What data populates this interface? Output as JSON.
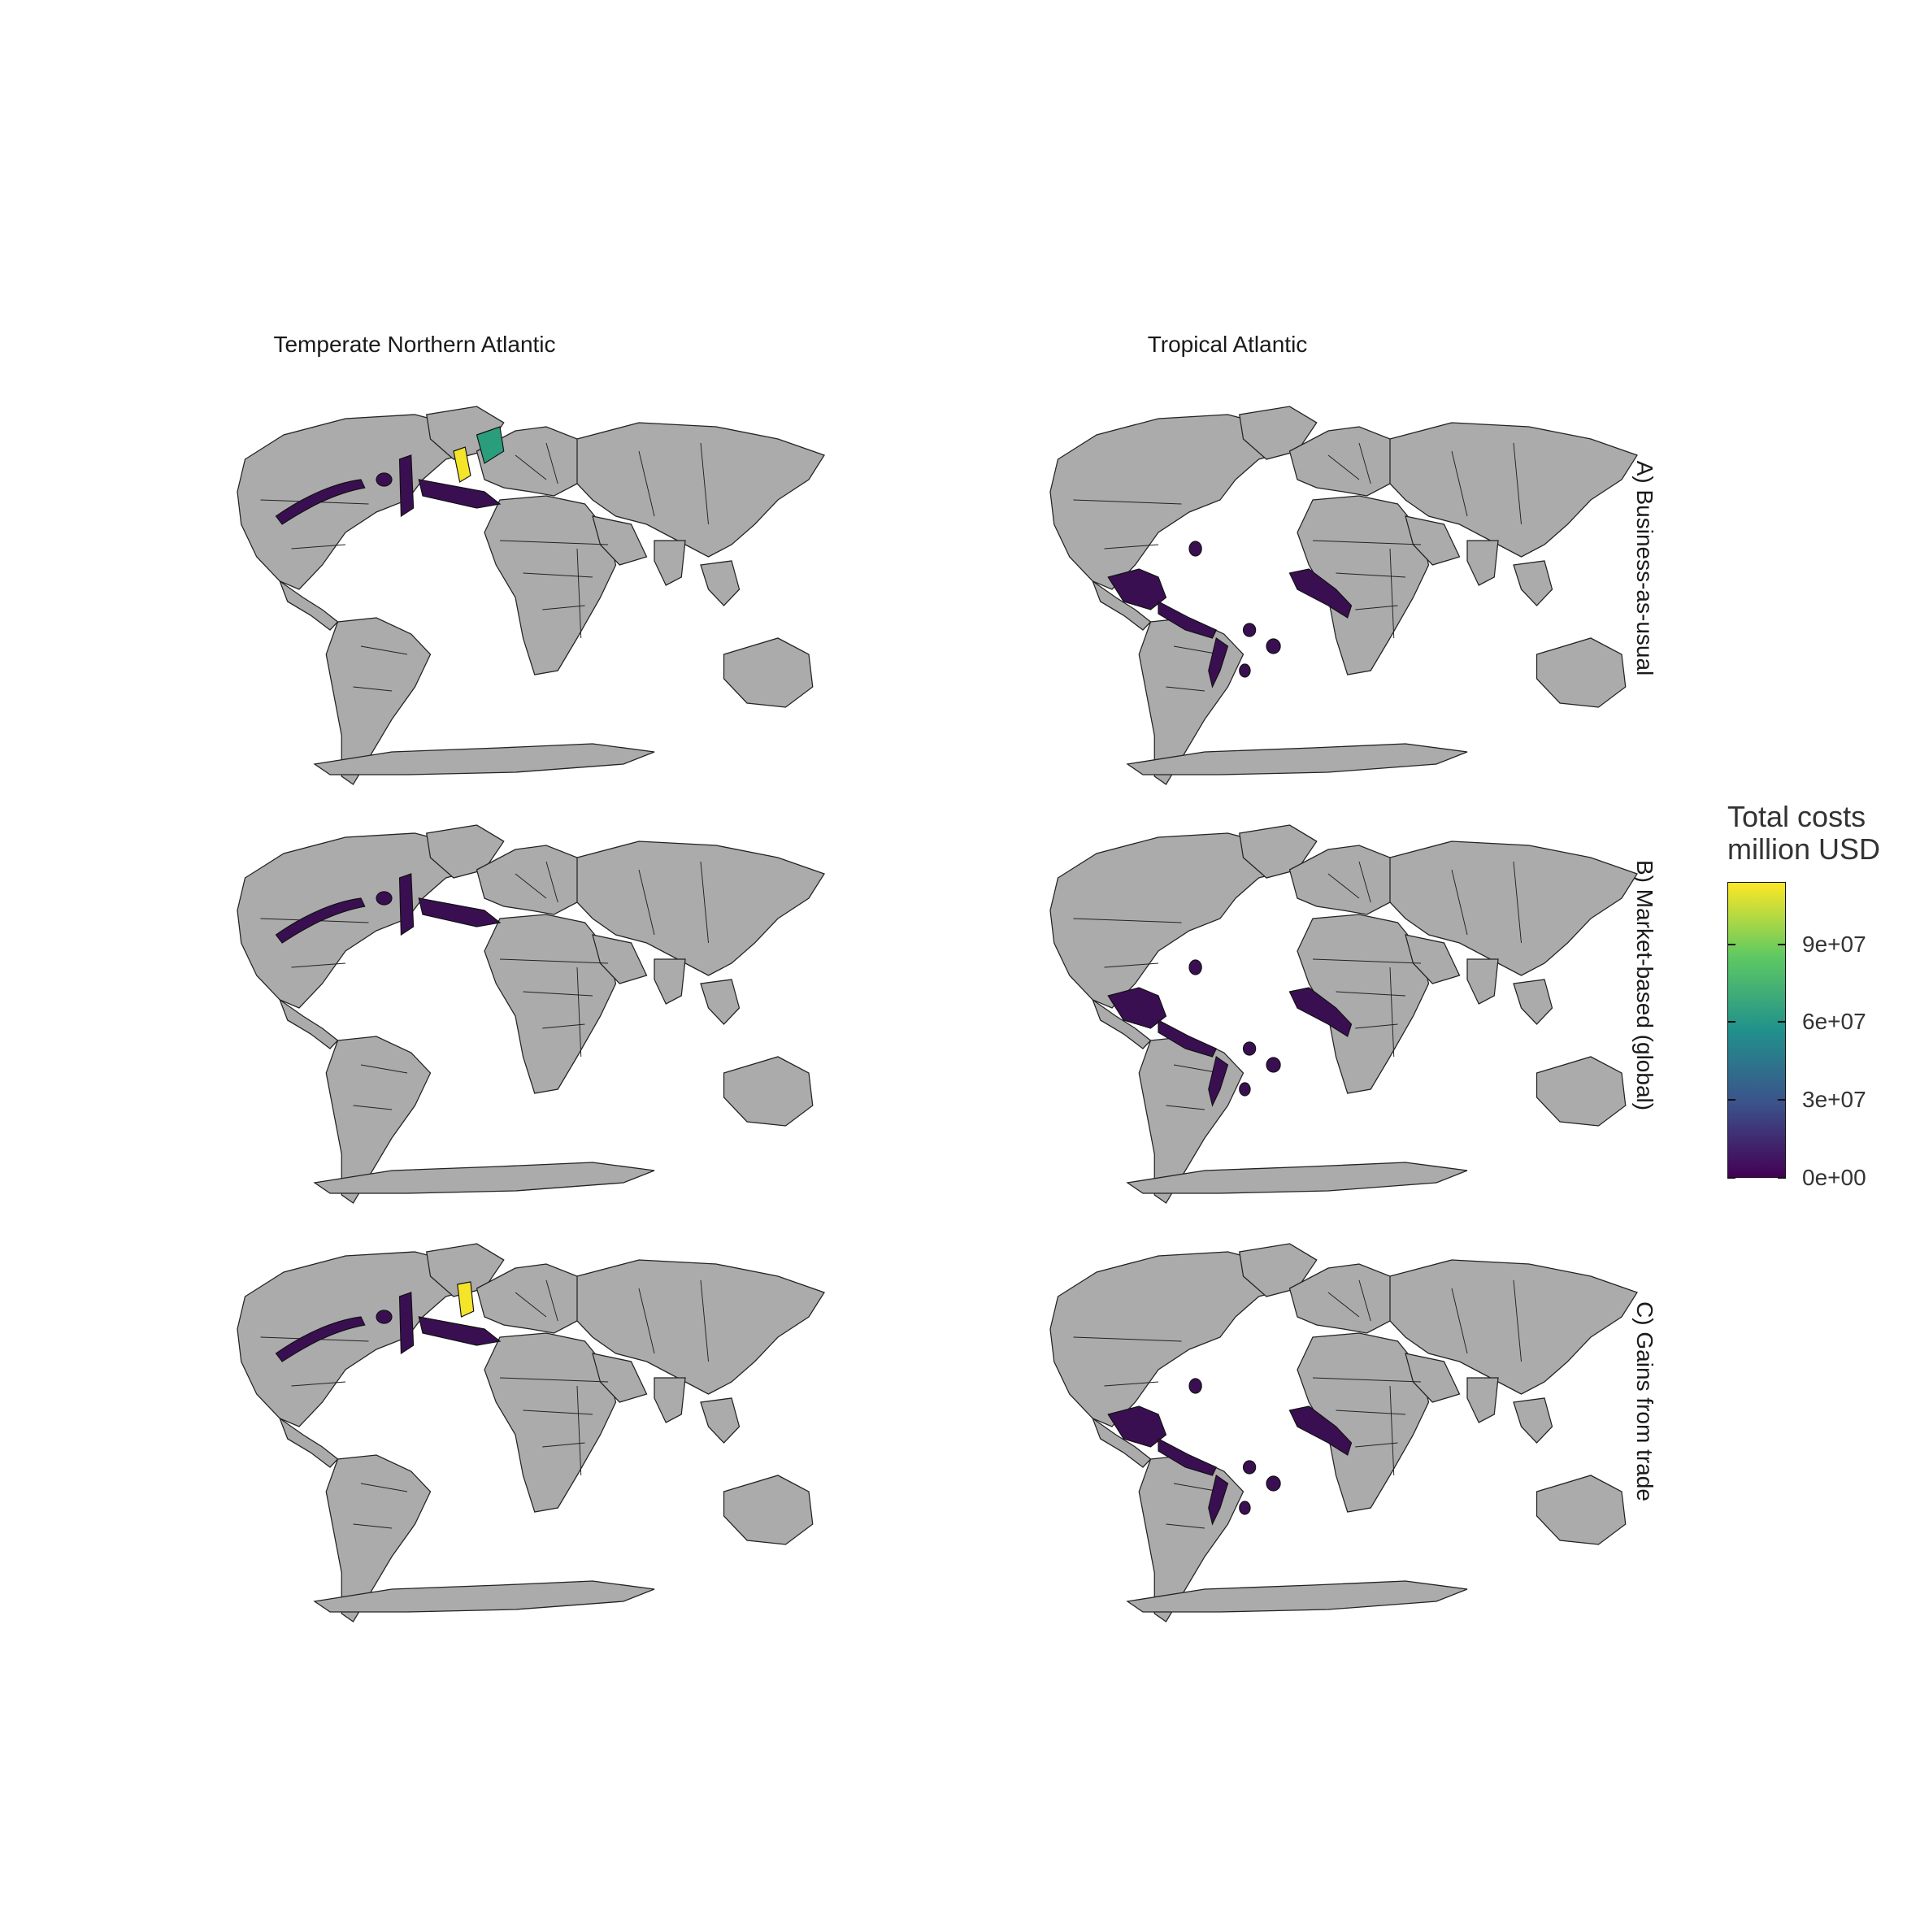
{
  "columns": [
    "Temperate Northern Atlantic",
    "Tropical Atlantic"
  ],
  "rows": [
    "A) Business-as-usual",
    "B) Market-based (global)",
    "C) Gains from trade"
  ],
  "legend": {
    "title_line1": "Total costs",
    "title_line2": "million USD",
    "ticks": [
      "0e+00",
      "3e+07",
      "6e+07",
      "9e+07"
    ],
    "tick_values": [
      0,
      30000000,
      60000000,
      90000000
    ],
    "max_value": 114000000,
    "colors": [
      "#440154",
      "#3b528b",
      "#21918c",
      "#5ec962",
      "#fde725"
    ]
  },
  "colors": {
    "land": "#ababab",
    "border": "#222222",
    "low": "#3a0f52",
    "mid": "#2a9d7c",
    "high": "#f5e52a"
  },
  "panels": [
    {
      "region": "Temperate Northern Atlantic",
      "scenario": "A) Business-as-usual",
      "highlights": [
        "North Sea: high",
        "Norway coast: mid",
        "Other zones: low"
      ]
    },
    {
      "region": "Tropical Atlantic",
      "scenario": "A) Business-as-usual",
      "highlights": [
        "All zones: low"
      ]
    },
    {
      "region": "Temperate Northern Atlantic",
      "scenario": "B) Market-based (global)",
      "highlights": [
        "All zones: low"
      ]
    },
    {
      "region": "Tropical Atlantic",
      "scenario": "B) Market-based (global)",
      "highlights": [
        "All zones: low"
      ]
    },
    {
      "region": "Temperate Northern Atlantic",
      "scenario": "C) Gains from trade",
      "highlights": [
        "North Sea: high",
        "Other zones: low"
      ]
    },
    {
      "region": "Tropical Atlantic",
      "scenario": "C) Gains from trade",
      "highlights": [
        "All zones: low"
      ]
    }
  ]
}
